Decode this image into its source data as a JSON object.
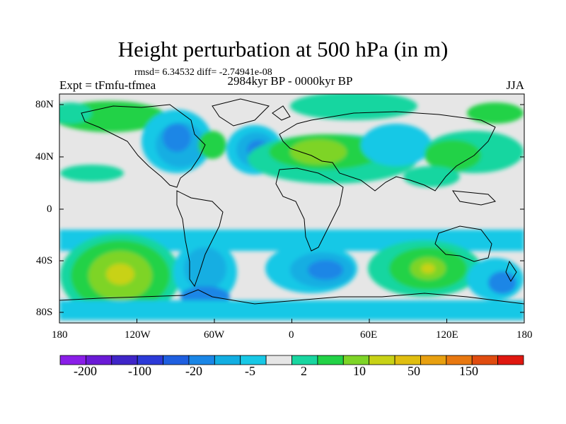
{
  "title": "Height perturbation at 500 hPa (in m)",
  "stats": "rmsd= 6.34532 diff= -2.74941e-08",
  "experiment": "Expt = tFmfu-tfmea",
  "period": "2984kyr BP - 0000kyr BP",
  "season": "JJA",
  "map": {
    "lat_labels": [
      "80N",
      "40N",
      "0",
      "40S",
      "80S"
    ],
    "lon_labels": [
      "180",
      "120W",
      "60W",
      "0",
      "60E",
      "120E",
      "180"
    ],
    "background_color": "#e6e6e6"
  },
  "colorbar": {
    "colors": [
      "#8a1ee8",
      "#6a1ad6",
      "#3f25c8",
      "#2c3ad8",
      "#1f5fe0",
      "#1a86e6",
      "#12aee2",
      "#18c8e6",
      "#e6e6e6",
      "#19d6a0",
      "#22d246",
      "#7ed427",
      "#c8d216",
      "#e0be10",
      "#e8a010",
      "#e87810",
      "#e04c10",
      "#e01810"
    ],
    "tick_labels": [
      "-200",
      "-100",
      "-20",
      "-5",
      "2",
      "10",
      "50",
      "150"
    ]
  }
}
